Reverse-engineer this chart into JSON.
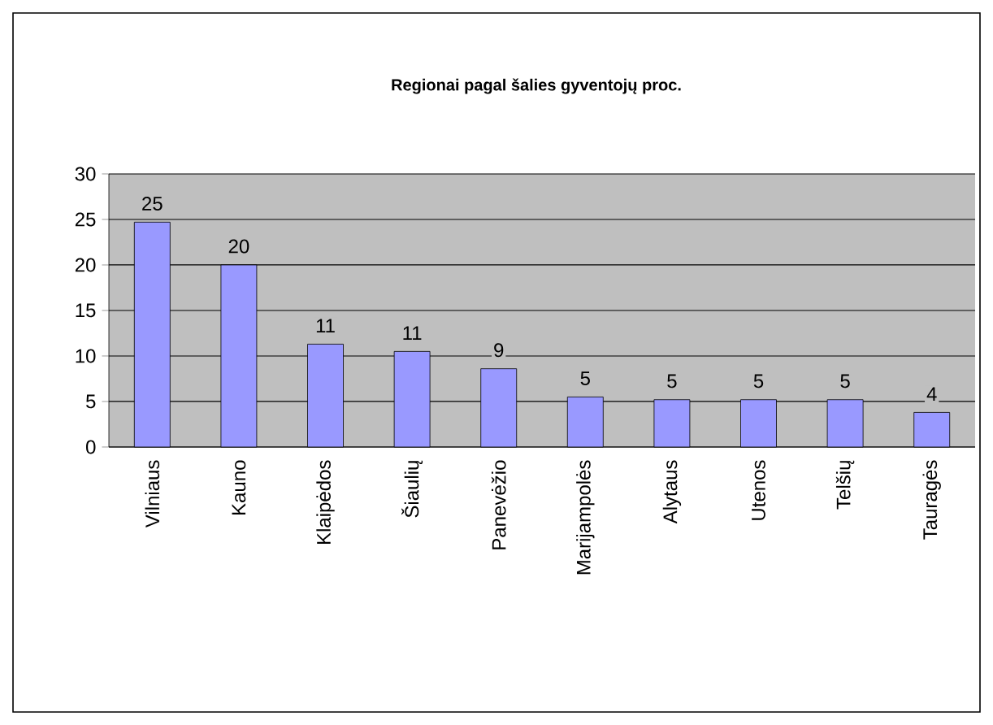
{
  "chart_data": {
    "type": "bar",
    "title": "Regionai pagal šalies gyventojų proc.",
    "categories": [
      "Vilniaus",
      "Kauno",
      "Klaipėdos",
      "Šiaulių",
      "Panevėžio",
      "Marijampolės",
      "Alytaus",
      "Utenos",
      "Telšių",
      "Tauragės"
    ],
    "values": [
      24.7,
      20,
      11.3,
      10.5,
      8.6,
      5.5,
      5.2,
      5.2,
      5.2,
      3.8
    ],
    "value_labels": [
      "25",
      "20",
      "11",
      "11",
      "9",
      "5",
      "5",
      "5",
      "5",
      "4"
    ],
    "color": "#9999ff",
    "ylim": [
      0,
      30
    ],
    "yticks": [
      0,
      5,
      10,
      15,
      20,
      25,
      30
    ],
    "grid": "y"
  }
}
